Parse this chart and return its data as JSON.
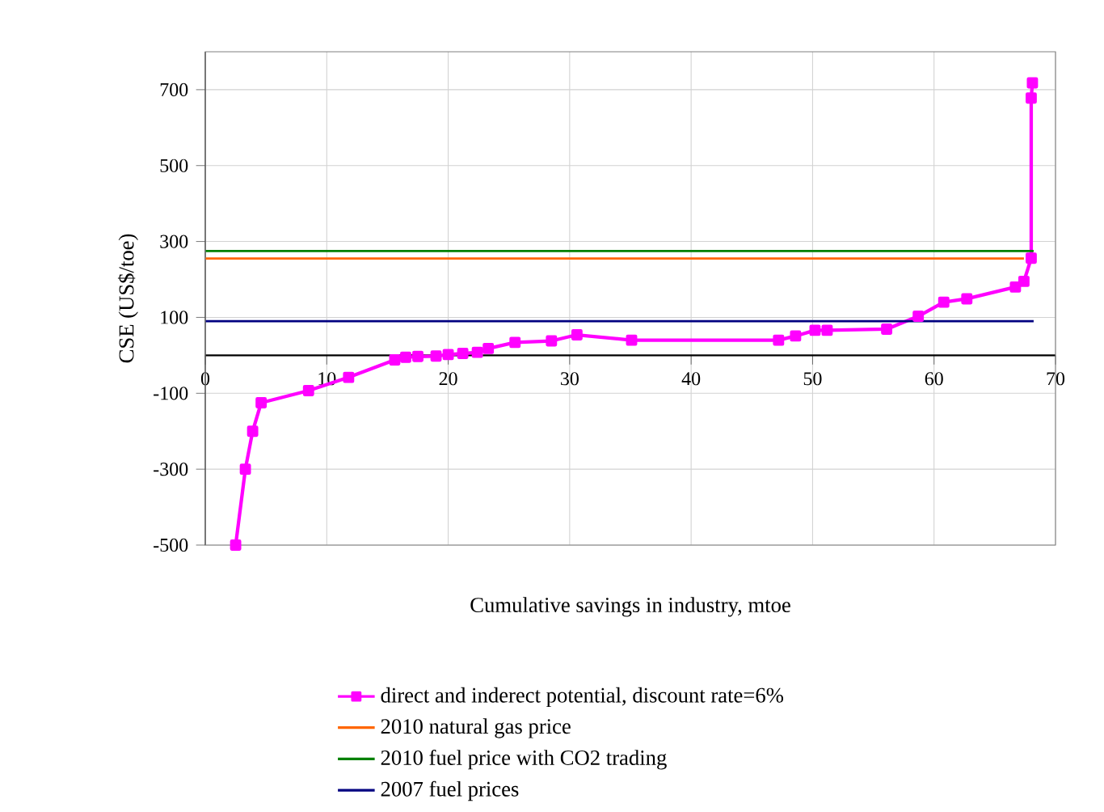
{
  "chart_data": {
    "type": "line",
    "xlabel": "Cumulative savings in industry, mtoe",
    "ylabel": "CSE (US$/toe)",
    "xlim": [
      0,
      70
    ],
    "ylim": [
      -500,
      800
    ],
    "xticks": [
      0,
      10,
      20,
      30,
      40,
      50,
      60,
      70
    ],
    "yticks": [
      -500,
      -300,
      -100,
      100,
      300,
      500,
      700
    ],
    "grid": true,
    "legend": "bottom",
    "series": [
      {
        "name": "direct and inderect potential, discount rate=6%",
        "color": "#ff00ff",
        "marker": "square",
        "x": [
          2.5,
          3.3,
          3.9,
          4.6,
          8.5,
          11.8,
          15.6,
          16.5,
          17.5,
          19,
          20,
          21.2,
          22.4,
          23.3,
          25.5,
          28.5,
          30.6,
          35.1,
          47.2,
          48.6,
          50.2,
          51.2,
          56.1,
          58.7,
          60.8,
          62.7,
          66.7,
          67.4,
          68.0,
          68.0,
          68.1
        ],
        "values": [
          -500,
          -300,
          -200,
          -125,
          -93,
          -58,
          -12,
          -5,
          -3,
          -2,
          2,
          5,
          8,
          18,
          34,
          38,
          54,
          40,
          40,
          51,
          66,
          66,
          69,
          103,
          140,
          149,
          180,
          195,
          256,
          678,
          718
        ]
      },
      {
        "name": "2010 natural gas price",
        "color": "#ff6600",
        "marker": "none",
        "x": [
          0,
          67.4
        ],
        "values": [
          255,
          255
        ]
      },
      {
        "name": "2010 fuel price with CO2 trading",
        "color": "#008000",
        "marker": "none",
        "x": [
          0,
          68.2
        ],
        "values": [
          275,
          275
        ]
      },
      {
        "name": "2007 fuel prices",
        "color": "#000080",
        "marker": "none",
        "x": [
          0,
          68.2
        ],
        "values": [
          90,
          90
        ]
      }
    ]
  }
}
